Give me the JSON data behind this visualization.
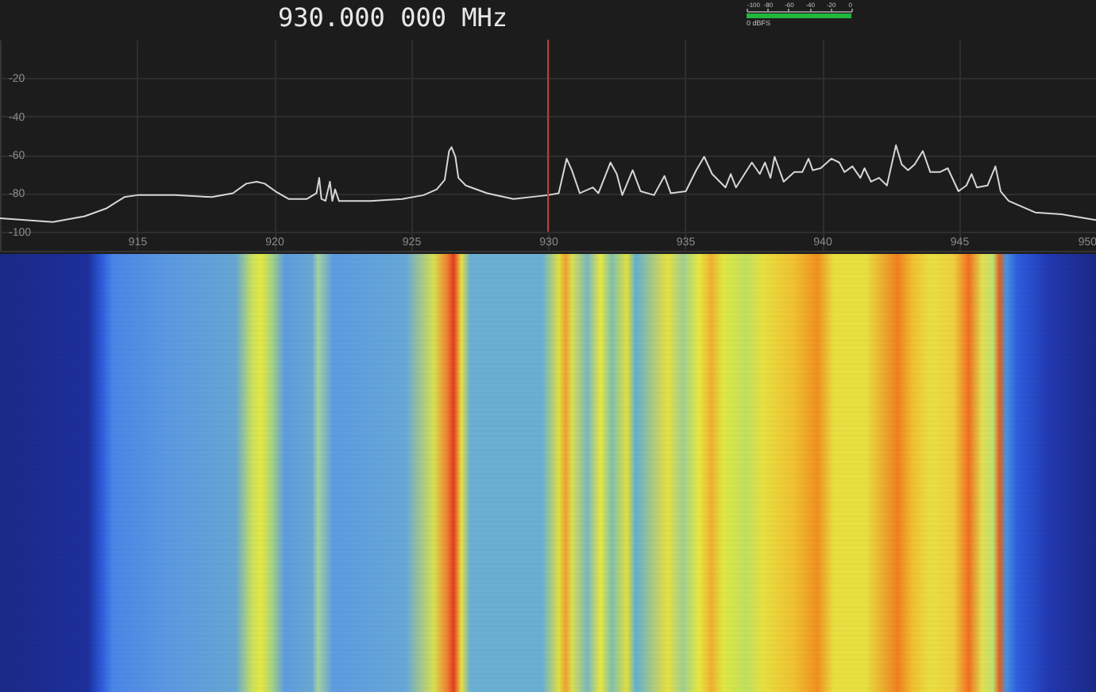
{
  "chart_data": [
    {
      "type": "line",
      "title": "930.000 000 MHz",
      "x": [
        910,
        911.93,
        913.09,
        913.87,
        914.54,
        915.02,
        916.38,
        917.73,
        918.5,
        918.99,
        919.37,
        919.66,
        920.05,
        920.53,
        921.2,
        921.55,
        921.65,
        921.73,
        921.88,
        922.04,
        922.13,
        922.23,
        922.37,
        923.53,
        924.69,
        925.46,
        925.94,
        926.23,
        926.39,
        926.48,
        926.62,
        926.73,
        927.0,
        927.78,
        928.74,
        930.0,
        930.39,
        930.68,
        930.87,
        931.16,
        931.64,
        931.84,
        932.28,
        932.51,
        932.71,
        933.09,
        933.38,
        933.87,
        934.25,
        934.48,
        935.03,
        935.41,
        935.7,
        935.99,
        936.48,
        936.67,
        936.86,
        937.44,
        937.73,
        937.92,
        938.12,
        938.27,
        938.6,
        938.99,
        939.28,
        939.51,
        939.66,
        939.95,
        940.34,
        940.63,
        940.82,
        941.11,
        941.4,
        941.55,
        941.79,
        942.08,
        942.37,
        942.7,
        942.91,
        943.14,
        943.38,
        943.68,
        943.95,
        944.3,
        944.59,
        944.98,
        945.27,
        945.46,
        945.65,
        946.04,
        946.33,
        946.52,
        946.81,
        947.78,
        948.74,
        950
      ],
      "values": [
        -93,
        -95,
        -92,
        -88,
        -82,
        -81,
        -81,
        -82,
        -80,
        -75,
        -74,
        -75,
        -79,
        -83,
        -83,
        -80,
        -72,
        -83,
        -84,
        -74,
        -84,
        -78,
        -84,
        -84,
        -83,
        -81,
        -78,
        -73,
        -58,
        -56,
        -61,
        -72,
        -76,
        -80,
        -83,
        -81,
        -80,
        -62,
        -68,
        -80,
        -77,
        -80,
        -64,
        -70,
        -81,
        -68,
        -79,
        -81,
        -71,
        -80,
        -79,
        -68,
        -61,
        -70,
        -77,
        -70,
        -77,
        -64,
        -70,
        -64,
        -72,
        -61,
        -74,
        -69,
        -69,
        -62,
        -68,
        -67,
        -62,
        -64,
        -69,
        -66,
        -72,
        -67,
        -74,
        -72,
        -76,
        -55,
        -65,
        -68,
        -65,
        -58,
        -69,
        -69,
        -67,
        -79,
        -76,
        -70,
        -77,
        -76,
        -66,
        -79,
        -84,
        -90,
        -91,
        -94
      ],
      "color": "#d6d6d6",
      "xlim": [
        910,
        950
      ],
      "xticks": [
        915,
        920,
        925,
        930,
        935,
        940,
        945,
        950
      ],
      "ylim": [
        -110,
        0
      ],
      "yticks": [
        -100,
        -80,
        -60,
        -40,
        -20
      ],
      "grid": true,
      "ref_lines": [
        {
          "axis": "x",
          "value": 930,
          "color": "#c03a3a"
        }
      ]
    },
    {
      "type": "bar",
      "orientation": "horizontal",
      "categories": [
        null
      ],
      "base": [
        -100
      ],
      "values": [
        100
      ],
      "color": "#1fb83c",
      "xlim": [
        -100,
        0
      ],
      "xticks": [
        -100,
        -80,
        -60,
        -40,
        -20,
        0
      ],
      "tick_labels": "x",
      "annotations": [
        "0 dBFS"
      ]
    }
  ]
}
